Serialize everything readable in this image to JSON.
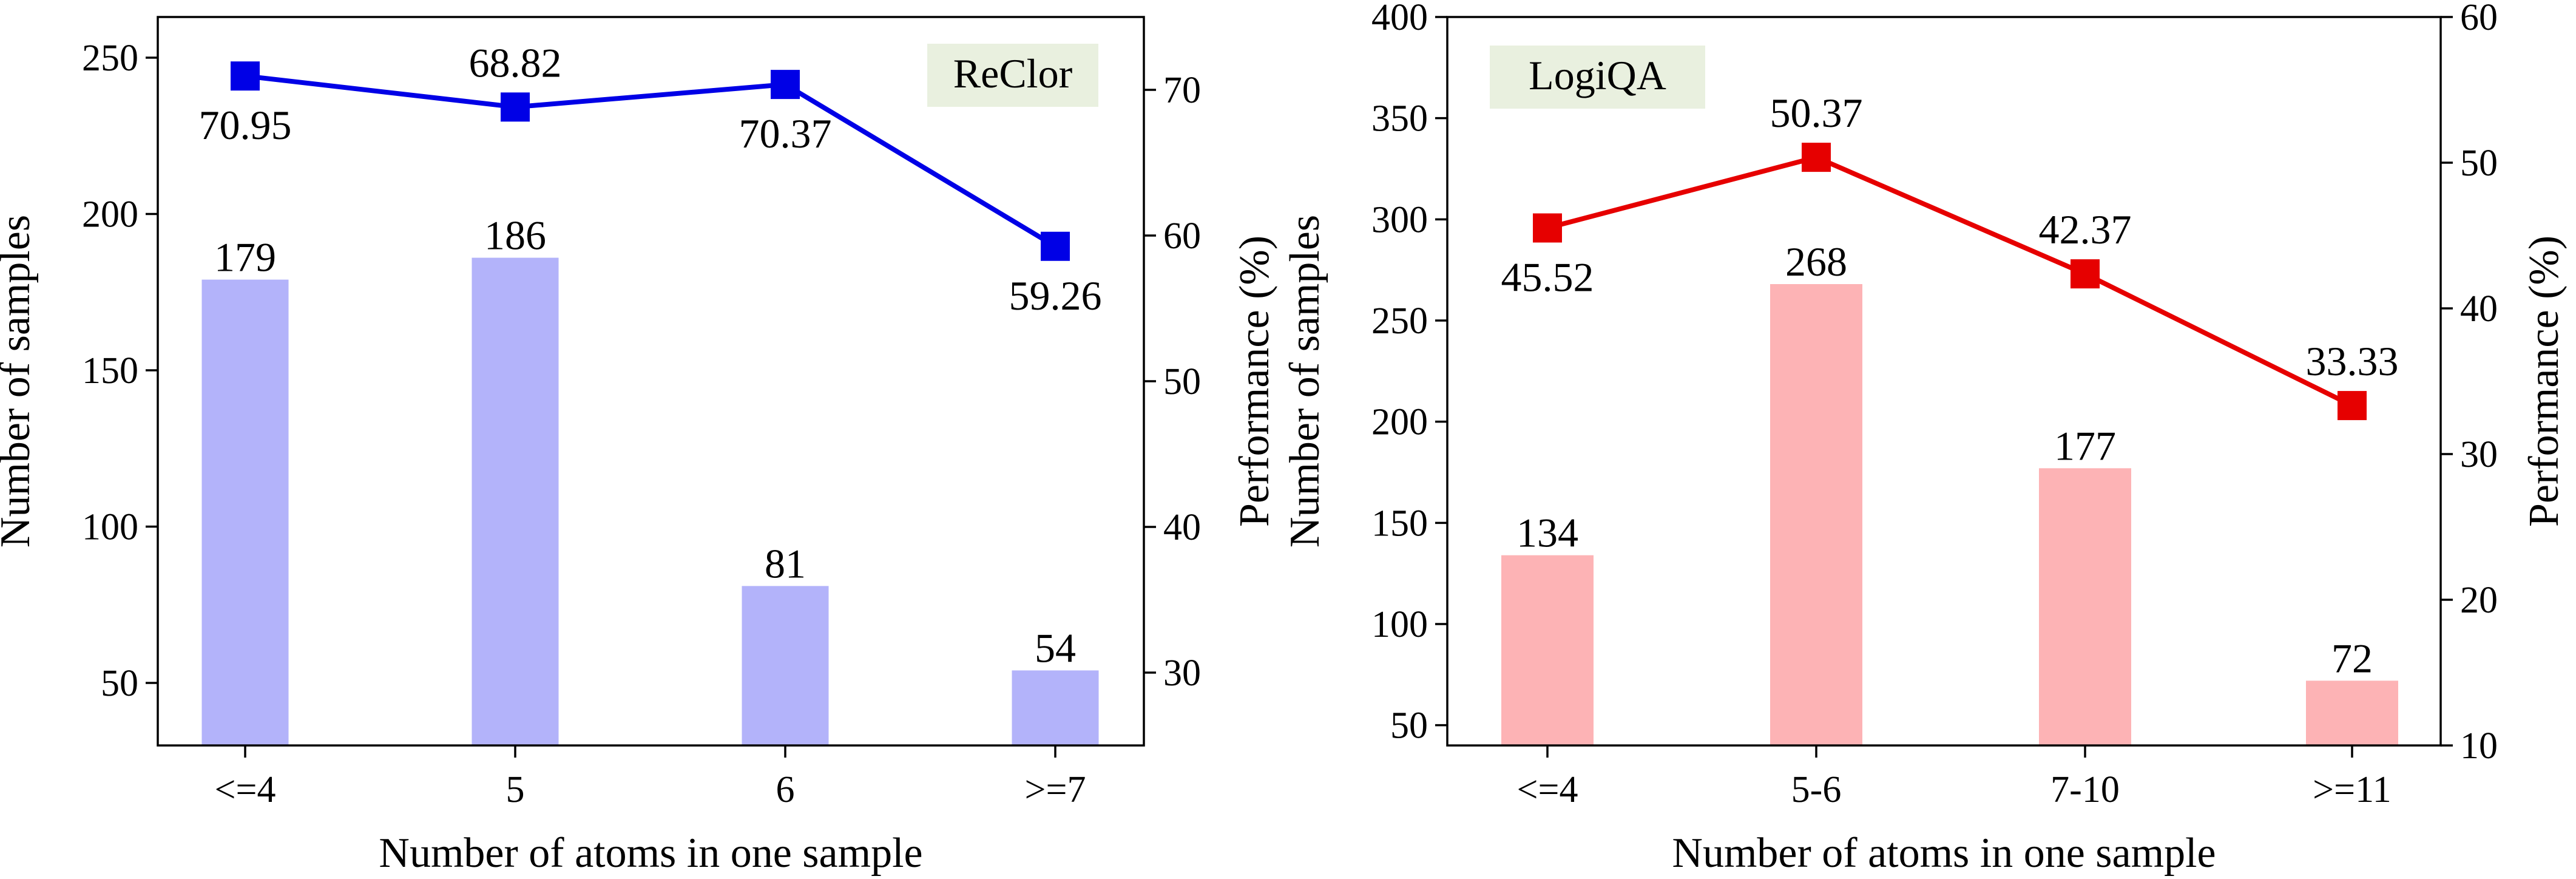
{
  "colors": {
    "reclor_bar": "#b3b3fa",
    "reclor_line": "#0000e6",
    "logiqa_bar": "#fdb3b5",
    "logiqa_line": "#e60000",
    "badge_bg": "#e9f0df",
    "axis": "#000000"
  },
  "chart_data": [
    {
      "type": "bar+line",
      "panel": "left",
      "badge": "ReClor",
      "xlabel": "Number of atoms in one sample",
      "ylabel_left": "Number of samples",
      "ylabel_right": "Performance (%)",
      "categories": [
        "<=4",
        "5",
        "6",
        ">=7"
      ],
      "bar_values": [
        179,
        186,
        81,
        54
      ],
      "bar_labels": [
        "179",
        "186",
        "81",
        "54"
      ],
      "line_values": [
        70.95,
        68.82,
        70.37,
        59.26
      ],
      "line_labels": [
        "70.95",
        "68.82",
        "70.37",
        "59.26"
      ],
      "line_label_positions": [
        "below",
        "above",
        "below",
        "below"
      ],
      "ylim_left": [
        30,
        263
      ],
      "yticks_left": [
        50,
        100,
        150,
        200,
        250
      ],
      "ytick_labels_left": [
        "50",
        "100",
        "150",
        "200",
        "250"
      ],
      "ylim_right": [
        25,
        75
      ],
      "yticks_right": [
        30,
        40,
        50,
        60,
        70
      ],
      "ytick_labels_right": [
        "30",
        "40",
        "50",
        "60",
        "70"
      ],
      "badge_position": "top-right",
      "grid": false
    },
    {
      "type": "bar+line",
      "panel": "right",
      "badge": "LogiQA",
      "xlabel": "Number of atoms in one sample",
      "ylabel_left": "Number of samples",
      "ylabel_right": "Performance (%)",
      "categories": [
        "<=4",
        "5-6",
        "7-10",
        ">=11"
      ],
      "bar_values": [
        134,
        268,
        177,
        72
      ],
      "bar_labels": [
        "134",
        "268",
        "177",
        "72"
      ],
      "line_values": [
        45.52,
        50.37,
        42.37,
        33.33
      ],
      "line_labels": [
        "45.52",
        "50.37",
        "42.37",
        "33.33"
      ],
      "line_label_positions": [
        "below",
        "above",
        "above",
        "above"
      ],
      "ylim_left": [
        40,
        400
      ],
      "yticks_left": [
        50,
        100,
        150,
        200,
        250,
        300,
        350,
        400
      ],
      "ytick_labels_left": [
        "50",
        "100",
        "150",
        "200",
        "250",
        "300",
        "350",
        "400"
      ],
      "ylim_right": [
        10,
        60
      ],
      "yticks_right": [
        10,
        20,
        30,
        40,
        50,
        60
      ],
      "ytick_labels_right": [
        "10",
        "20",
        "30",
        "40",
        "50",
        "60"
      ],
      "badge_position": "top-left",
      "grid": false
    }
  ]
}
